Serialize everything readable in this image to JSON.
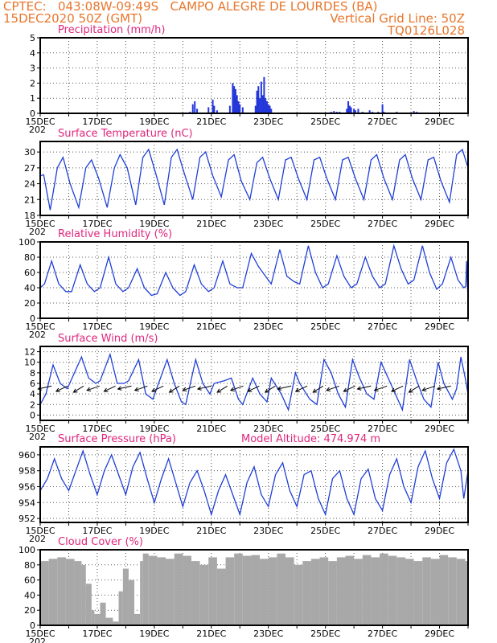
{
  "header": {
    "line1": "CPTEC:   043:08W-09:49S   CAMPO ALEGRE DE LOURDES (BA)",
    "line2_left": "15DEC2020 50Z (GMT)",
    "line2_right": "Vertical Grid Line: 50Z",
    "line3_right": "TQ0126L028",
    "text_color": "#e8762c"
  },
  "x_tick_labels": [
    "15DEC",
    "17DEC",
    "19DEC",
    "21DEC",
    "23DEC",
    "25DEC",
    "27DEC",
    "29DEC"
  ],
  "year_fragment": "202",
  "colors": {
    "line": "#1f3fd6",
    "bar": "#2336d9",
    "cloud": "#a8a8a8",
    "title": "#e0267d",
    "arrow": "#000000"
  },
  "chart_data": [
    {
      "type": "bar",
      "title": "Precipitation (mm/h)",
      "x_start": "15DEC",
      "x_days": 15,
      "ylim": [
        0,
        5
      ],
      "yticks": [
        0,
        1,
        2,
        3,
        4,
        5
      ],
      "grid": true,
      "events": [
        [
          5.25,
          0.1
        ],
        [
          5.35,
          0.6
        ],
        [
          5.42,
          0.8
        ],
        [
          5.5,
          0.3
        ],
        [
          5.9,
          0.4
        ],
        [
          6.05,
          0.9
        ],
        [
          6.1,
          0.5
        ],
        [
          6.2,
          0.2
        ],
        [
          6.65,
          0.5
        ],
        [
          6.75,
          2.0
        ],
        [
          6.8,
          1.8
        ],
        [
          6.85,
          1.6
        ],
        [
          6.9,
          1.2
        ],
        [
          6.95,
          0.8
        ],
        [
          7.0,
          0.6
        ],
        [
          7.1,
          0.4
        ],
        [
          7.55,
          0.5
        ],
        [
          7.6,
          1.5
        ],
        [
          7.65,
          1.8
        ],
        [
          7.7,
          1.0
        ],
        [
          7.75,
          2.1
        ],
        [
          7.8,
          1.2
        ],
        [
          7.85,
          2.4
        ],
        [
          7.9,
          1.0
        ],
        [
          7.95,
          0.8
        ],
        [
          8.0,
          0.6
        ],
        [
          8.05,
          0.5
        ],
        [
          8.1,
          0.3
        ],
        [
          10.2,
          0.1
        ],
        [
          10.3,
          0.15
        ],
        [
          10.4,
          0.1
        ],
        [
          10.5,
          0.1
        ],
        [
          10.75,
          0.3
        ],
        [
          10.8,
          0.8
        ],
        [
          10.85,
          0.5
        ],
        [
          10.9,
          0.4
        ],
        [
          11.0,
          0.3
        ],
        [
          11.05,
          0.2
        ],
        [
          11.15,
          0.3
        ],
        [
          11.3,
          0.1
        ],
        [
          11.55,
          0.2
        ],
        [
          11.65,
          0.1
        ],
        [
          11.85,
          0.1
        ],
        [
          12.0,
          0.6
        ],
        [
          12.05,
          0.1
        ],
        [
          12.5,
          0.1
        ],
        [
          13.1,
          0.15
        ],
        [
          13.2,
          0.1
        ]
      ]
    },
    {
      "type": "line",
      "title": "Surface Temperature (nC)",
      "x_start": "15DEC",
      "x_days": 15,
      "ylim": [
        18,
        32
      ],
      "yticks": [
        18,
        21,
        24,
        27,
        30
      ],
      "grid": true,
      "series": [
        {
          "name": "",
          "values": [
            25.5,
            25.7,
            19,
            27,
            29,
            24,
            19.5,
            27,
            28.5,
            25,
            19.5,
            27,
            29.5,
            27,
            20,
            29,
            30.5,
            26,
            20,
            29,
            30.5,
            26,
            21,
            29,
            30,
            25.5,
            21.5,
            28.5,
            29.5,
            24.5,
            21,
            28,
            29,
            25,
            21,
            28.5,
            29,
            25,
            21,
            28.5,
            29,
            25,
            21,
            28.5,
            29,
            25,
            21,
            28.5,
            29.5,
            25,
            21,
            28.5,
            29.5,
            25,
            21,
            28.5,
            29,
            24.5,
            20.5,
            29.5,
            30.5,
            27
          ]
        }
      ],
      "x": [
        0,
        0.12,
        0.35,
        0.6,
        0.8,
        1.05,
        1.35,
        1.6,
        1.8,
        2.05,
        2.35,
        2.6,
        2.8,
        3.05,
        3.35,
        3.6,
        3.8,
        4.05,
        4.35,
        4.6,
        4.8,
        5.05,
        5.35,
        5.6,
        5.8,
        6.05,
        6.35,
        6.6,
        6.8,
        7.05,
        7.35,
        7.6,
        7.8,
        8.05,
        8.35,
        8.6,
        8.8,
        9.05,
        9.35,
        9.6,
        9.8,
        10.05,
        10.35,
        10.6,
        10.8,
        11.05,
        11.35,
        11.6,
        11.8,
        12.05,
        12.35,
        12.6,
        12.8,
        13.05,
        13.35,
        13.6,
        13.8,
        14.05,
        14.35,
        14.6,
        14.8,
        15
      ]
    },
    {
      "type": "line",
      "title": "Relative Humidity (%)",
      "x_start": "15DEC",
      "x_days": 15,
      "ylim": [
        0,
        100
      ],
      "yticks": [
        0,
        20,
        40,
        60,
        80,
        100
      ],
      "grid": true,
      "series": [
        {
          "name": "",
          "values": [
            40,
            45,
            75,
            45,
            35,
            35,
            70,
            45,
            35,
            40,
            80,
            45,
            35,
            40,
            65,
            40,
            30,
            32,
            60,
            40,
            30,
            35,
            70,
            45,
            35,
            40,
            75,
            45,
            40,
            40,
            85,
            68,
            55,
            45,
            90,
            55,
            48,
            45,
            95,
            60,
            40,
            45,
            82,
            55,
            40,
            45,
            80,
            55,
            40,
            45,
            95,
            65,
            45,
            50,
            95,
            60,
            38,
            45,
            80,
            50,
            40,
            42,
            75,
            50,
            35,
            38
          ]
        }
      ],
      "x": [
        0,
        0.15,
        0.4,
        0.65,
        0.9,
        1.1,
        1.4,
        1.65,
        1.9,
        2.1,
        2.4,
        2.65,
        2.9,
        3.1,
        3.4,
        3.65,
        3.9,
        4.1,
        4.4,
        4.65,
        4.9,
        5.1,
        5.4,
        5.65,
        5.9,
        6.1,
        6.4,
        6.65,
        6.9,
        7.1,
        7.4,
        7.65,
        7.9,
        8.1,
        8.4,
        8.65,
        8.9,
        9.1,
        9.4,
        9.65,
        9.9,
        10.1,
        10.4,
        10.65,
        10.9,
        11.1,
        11.4,
        11.65,
        11.9,
        12.1,
        12.4,
        12.65,
        12.9,
        13.1,
        13.4,
        13.65,
        13.9,
        14.1,
        14.4,
        14.65,
        14.85,
        14.92,
        14.95,
        14.97,
        14.99,
        15
      ]
    },
    {
      "type": "line",
      "title": "Surface Wind (m/s)",
      "x_start": "15DEC",
      "x_days": 15,
      "ylim": [
        -1,
        13
      ],
      "yticks": [
        0,
        2,
        4,
        6,
        8,
        10,
        12
      ],
      "grid": true,
      "series": [
        {
          "name": "",
          "values": [
            2,
            4,
            9.5,
            6,
            5,
            11,
            7,
            6,
            6.5,
            11.5,
            6,
            6,
            6.5,
            10.5,
            4,
            3,
            10.5,
            6,
            2.5,
            2,
            10.5,
            6,
            4,
            6,
            6.5,
            7,
            3,
            2,
            7,
            4,
            2.5,
            7,
            4,
            1,
            8,
            6,
            3,
            2,
            10.5,
            8,
            4,
            1.5,
            10.5,
            7,
            4,
            3,
            10,
            7,
            4,
            1,
            10.5,
            6.5,
            3,
            1.5,
            10,
            6,
            3,
            5,
            11,
            7,
            4
          ]
        }
      ],
      "x": [
        0,
        0.2,
        0.45,
        0.7,
        0.95,
        1.45,
        1.7,
        1.95,
        2.1,
        2.45,
        2.7,
        2.95,
        3.1,
        3.45,
        3.7,
        3.95,
        4.45,
        4.7,
        4.95,
        5.1,
        5.45,
        5.7,
        5.95,
        6.1,
        6.45,
        6.7,
        6.95,
        7.1,
        7.45,
        7.7,
        7.95,
        8.1,
        8.45,
        8.7,
        8.95,
        9.1,
        9.45,
        9.7,
        9.95,
        10.2,
        10.45,
        10.7,
        10.95,
        11.2,
        11.45,
        11.7,
        11.95,
        12.2,
        12.45,
        12.7,
        12.95,
        13.2,
        13.45,
        13.7,
        13.95,
        14.15,
        14.45,
        14.6,
        14.75,
        14.9,
        15
      ]
    },
    {
      "type": "line",
      "title": "Surface Pressure (hPa)",
      "annotation": "Model Altitude: 474.974 m",
      "x_start": "15DEC",
      "x_days": 15,
      "ylim": [
        951.5,
        961
      ],
      "yticks": [
        952,
        954,
        956,
        958,
        960
      ],
      "grid": true,
      "series": [
        {
          "name": "",
          "values": [
            955.5,
            957,
            959.5,
            957,
            955.5,
            958,
            960.5,
            957.5,
            955,
            958,
            960,
            957.5,
            955,
            958.5,
            960.3,
            957,
            954,
            957,
            959.5,
            956.5,
            953.5,
            956.5,
            958,
            955.5,
            952.5,
            955.5,
            957.5,
            955,
            952.5,
            956.5,
            958.5,
            955,
            953.5,
            957.5,
            959,
            955.5,
            953.5,
            957.5,
            958,
            954.5,
            952.5,
            957,
            958,
            954.5,
            952.5,
            957,
            958.2,
            954.5,
            953,
            957.5,
            959.5,
            956,
            954,
            958.5,
            960.5,
            957,
            954.5,
            959,
            960.7,
            958,
            954.5,
            958
          ]
        }
      ],
      "x": [
        0,
        0.25,
        0.5,
        0.75,
        1.0,
        1.25,
        1.5,
        1.75,
        2.0,
        2.25,
        2.5,
        2.75,
        3.0,
        3.25,
        3.5,
        3.75,
        4.0,
        4.25,
        4.5,
        4.75,
        5.0,
        5.25,
        5.5,
        5.75,
        6.0,
        6.25,
        6.5,
        6.75,
        7.0,
        7.25,
        7.5,
        7.75,
        8.0,
        8.25,
        8.5,
        8.75,
        9.0,
        9.25,
        9.5,
        9.75,
        10.0,
        10.25,
        10.5,
        10.75,
        11.0,
        11.25,
        11.5,
        11.75,
        12.0,
        12.25,
        12.5,
        12.75,
        13.0,
        13.25,
        13.5,
        13.75,
        14.0,
        14.25,
        14.5,
        14.75,
        14.85,
        15
      ]
    },
    {
      "type": "bar",
      "title": "Cloud Cover (%)",
      "x_start": "15DEC",
      "x_days": 15,
      "ylim": [
        0,
        100
      ],
      "yticks": [
        0,
        20,
        40,
        60,
        80,
        100
      ],
      "grid": true,
      "x": [
        0,
        0.3,
        0.6,
        0.9,
        1.2,
        1.45,
        1.6,
        1.8,
        1.9,
        2.1,
        2.3,
        2.55,
        2.75,
        2.9,
        3.1,
        3.3,
        3.5,
        3.6,
        3.8,
        4.1,
        4.4,
        4.7,
        5.0,
        5.3,
        5.6,
        5.9,
        6.2,
        6.5,
        6.8,
        7.1,
        7.4,
        7.7,
        8.0,
        8.3,
        8.6,
        8.9,
        9.2,
        9.5,
        9.8,
        10.1,
        10.4,
        10.7,
        11.0,
        11.3,
        11.6,
        11.9,
        12.2,
        12.5,
        12.8,
        13.1,
        13.4,
        13.7,
        14.0,
        14.3,
        14.6,
        14.9
      ],
      "values": [
        85,
        88,
        90,
        88,
        85,
        80,
        55,
        20,
        15,
        30,
        10,
        5,
        45,
        75,
        60,
        15,
        85,
        95,
        92,
        90,
        88,
        95,
        92,
        85,
        80,
        90,
        75,
        90,
        95,
        92,
        93,
        88,
        90,
        95,
        90,
        80,
        85,
        88,
        90,
        85,
        90,
        92,
        88,
        93,
        90,
        95,
        92,
        90,
        88,
        85,
        90,
        88,
        93,
        90,
        88,
        85
      ]
    }
  ]
}
